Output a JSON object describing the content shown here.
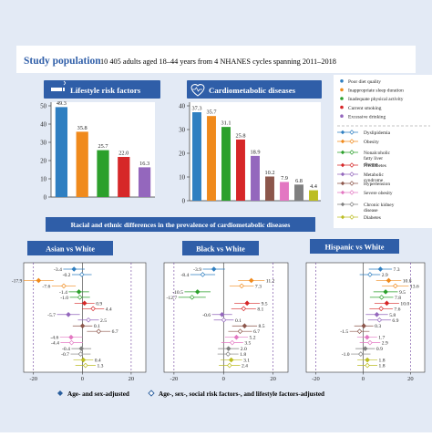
{
  "colors": {
    "background": "#e3eaf5",
    "header_box": "#ffffff",
    "title_bar": "#2f5ea8",
    "white": "#ffffff",
    "age_sex_marker": "#2b5f9e",
    "full_adjusted_marker": "#2b5f9e",
    "dashed_line": "#6a3c9a"
  },
  "header": {
    "title": "Study population",
    "subtitle": "10 405 adults aged 18–44 years from 4 NHANES cycles spanning 2011–2018"
  },
  "legend_top": {
    "items": [
      {
        "label": "Poor diet quality",
        "color": "#2f7fc1"
      },
      {
        "label": "Inappropriate sleep duration",
        "color": "#f08a1c"
      },
      {
        "label": "Inadequate physical activity",
        "color": "#2ca02c"
      },
      {
        "label": "Current smoking",
        "color": "#d62728"
      },
      {
        "label": "Excessive drinking",
        "color": "#9467bd"
      }
    ]
  },
  "legend_bottom": {
    "items": [
      {
        "label": "Dyslipidemia",
        "color": "#2f7fc1"
      },
      {
        "label": "Obesity",
        "color": "#f08a1c"
      },
      {
        "label": "Nonalcoholic fatty liver disease",
        "color": "#2ca02c"
      },
      {
        "label": "Prediabetes",
        "color": "#d62728"
      },
      {
        "label": "Metabolic syndrome",
        "color": "#9467bd"
      },
      {
        "label": "Hypertension",
        "color": "#8c564b"
      },
      {
        "label": "Severe obesity",
        "color": "#e377c2"
      },
      {
        "label": "Chronic kidney disease",
        "color": "#7f7f7f"
      },
      {
        "label": "Diabetes",
        "color": "#bcbd22"
      }
    ]
  },
  "bottom_legend": {
    "age_sex": "Age- and sex-adjusted",
    "full": "Age-, sex-, social risk factors-, and lifestyle factors-adjusted"
  },
  "chart_data": [
    {
      "type": "bar",
      "title": "Lifestyle risk factors",
      "icon": "smoking-icon",
      "categories": [
        "Poor diet quality",
        "Inappropriate sleep duration",
        "Inadequate physical activity",
        "Current smoking",
        "Excessive drinking"
      ],
      "values": [
        49.3,
        35.8,
        25.7,
        22.0,
        16.3
      ],
      "labels": [
        "49.3",
        "35.8",
        "25.7",
        "22.0",
        "16.3"
      ],
      "colors": [
        "#2f7fc1",
        "#f08a1c",
        "#2ca02c",
        "#d62728",
        "#9467bd"
      ],
      "ylim": [
        0,
        50
      ],
      "yticks": [
        "0",
        "10",
        "20",
        "30",
        "40",
        "50"
      ]
    },
    {
      "type": "bar",
      "title": "Cardiometabolic diseases",
      "icon": "heart-pulse-icon",
      "categories": [
        "Dyslipidemia",
        "Obesity",
        "Nonalcoholic fatty liver disease",
        "Prediabetes",
        "Metabolic syndrome",
        "Hypertension",
        "Severe obesity",
        "Chronic kidney disease",
        "Diabetes"
      ],
      "values": [
        37.3,
        35.7,
        31.1,
        25.8,
        18.9,
        10.2,
        7.9,
        6.8,
        4.4
      ],
      "labels": [
        "37.3",
        "35.7",
        "31.1",
        "25.8",
        "18.9",
        "10.2",
        "7.9",
        "6.8",
        "4.4"
      ],
      "colors": [
        "#2f7fc1",
        "#f08a1c",
        "#2ca02c",
        "#d62728",
        "#9467bd",
        "#8c564b",
        "#e377c2",
        "#7f7f7f",
        "#bcbd22"
      ],
      "ylim": [
        0,
        40
      ],
      "yticks": [
        "0",
        "10",
        "20",
        "30",
        "40"
      ]
    },
    {
      "type": "scatter",
      "section_title": "Racial and ethnic differences in the prevalence of cardiometabolic diseases",
      "title": "Asian vs White",
      "xlim": [
        -24,
        26
      ],
      "xticks": [
        -20,
        0,
        20
      ],
      "row_colors": [
        "#2f7fc1",
        "#f08a1c",
        "#2ca02c",
        "#d62728",
        "#9467bd",
        "#8c564b",
        "#e377c2",
        "#7f7f7f",
        "#bcbd22"
      ],
      "age_sex": [
        -3.4,
        -17.9,
        -1.4,
        0.9,
        -5.7,
        0.1,
        -4.6,
        -0.4,
        0.4
      ],
      "full": [
        -0.2,
        -7.6,
        -1.0,
        4.4,
        2.5,
        6.7,
        -4.4,
        -0.7,
        1.3
      ],
      "age_sex_labels": [
        "-3.4",
        "-17.9",
        "-1.4",
        "0.9",
        "-5.7",
        "0.1",
        "-4.6",
        "-0.4",
        "0.4"
      ],
      "full_labels": [
        "-0.2",
        "-7.6",
        "-1.0",
        "4.4",
        "2.5",
        "6.7",
        "-4.4",
        "-0.7",
        "1.3"
      ]
    },
    {
      "type": "scatter",
      "title": "Black vs White",
      "xlim": [
        -24,
        26
      ],
      "xticks": [
        -20,
        0,
        20
      ],
      "row_colors": [
        "#2f7fc1",
        "#f08a1c",
        "#2ca02c",
        "#d62728",
        "#9467bd",
        "#8c564b",
        "#e377c2",
        "#7f7f7f",
        "#bcbd22"
      ],
      "age_sex": [
        -3.9,
        11.2,
        -10.5,
        9.5,
        -0.6,
        8.5,
        5.2,
        2.0,
        3.1
      ],
      "full": [
        -8.4,
        7.3,
        -12.7,
        8.1,
        0.1,
        6.7,
        3.5,
        1.8,
        2.4
      ],
      "age_sex_labels": [
        "-3.9",
        "11.2",
        "-10.5",
        "9.5",
        "-0.6",
        "8.5",
        "5.2",
        "2.0",
        "3.1"
      ],
      "full_labels": [
        "-8.4",
        "7.3",
        "-12.7",
        "8.1",
        "0.1",
        "6.7",
        "3.5",
        "1.8",
        "2.4"
      ]
    },
    {
      "type": "scatter",
      "title": "Hispanic vs White",
      "xlim": [
        -24,
        26
      ],
      "xticks": [
        -20,
        0,
        20
      ],
      "row_colors": [
        "#2f7fc1",
        "#f08a1c",
        "#2ca02c",
        "#d62728",
        "#9467bd",
        "#8c564b",
        "#e377c2",
        "#7f7f7f",
        "#bcbd22"
      ],
      "age_sex": [
        7.3,
        10.8,
        9.5,
        10.0,
        5.8,
        0.3,
        1.7,
        0.9,
        1.8
      ],
      "full": [
        2.9,
        13.6,
        7.8,
        7.6,
        6.9,
        -1.5,
        2.9,
        -1.0,
        1.8
      ],
      "age_sex_labels": [
        "7.3",
        "10.8",
        "9.5",
        "10.0",
        "5.8",
        "0.3",
        "1.7",
        "0.9",
        "1.8"
      ],
      "full_labels": [
        "2.9",
        "13.6",
        "7.8",
        "7.6",
        "6.9",
        "-1.5",
        "2.9",
        "-1.0",
        "1.8"
      ]
    }
  ]
}
